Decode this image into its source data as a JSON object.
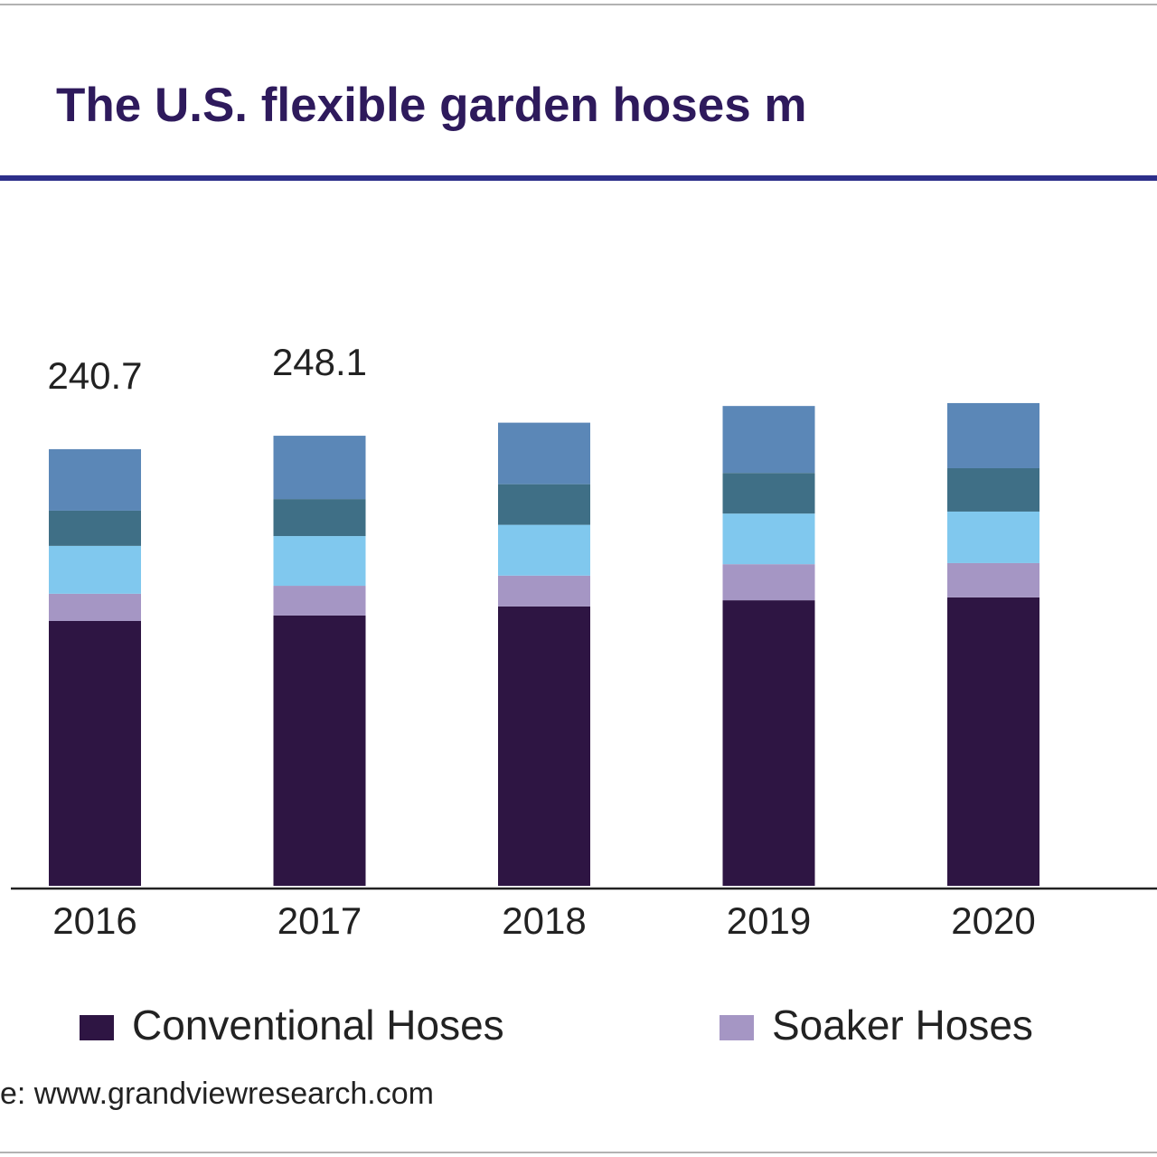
{
  "chart_data": {
    "type": "stacked_bar",
    "title": "The U.S. flexible garden hoses m",
    "categories": [
      "2016",
      "2017",
      "2018",
      "2019",
      "2020"
    ],
    "series": [
      {
        "name": "Conventional Hoses",
        "color": "#2e1543",
        "values": [
          146,
          149,
          154,
          157.4,
          159
        ]
      },
      {
        "name": "Soaker Hoses",
        "color": "#a596c4",
        "values": [
          15,
          16.4,
          17,
          19.9,
          18.9
        ]
      },
      {
        "color": "#80c8ee",
        "values": [
          26.4,
          27.4,
          28,
          27.9,
          28.4
        ]
      },
      {
        "color": "#3f6f86",
        "values": [
          19.4,
          20.4,
          22.4,
          22.4,
          23.9
        ]
      },
      {
        "color": "#5b87b7",
        "values": [
          33.9,
          34.9,
          33.9,
          36.9,
          35.9
        ]
      }
    ],
    "totals": [
      240.7,
      248.1
    ],
    "source": "e: www.grandviewresearch.com"
  }
}
